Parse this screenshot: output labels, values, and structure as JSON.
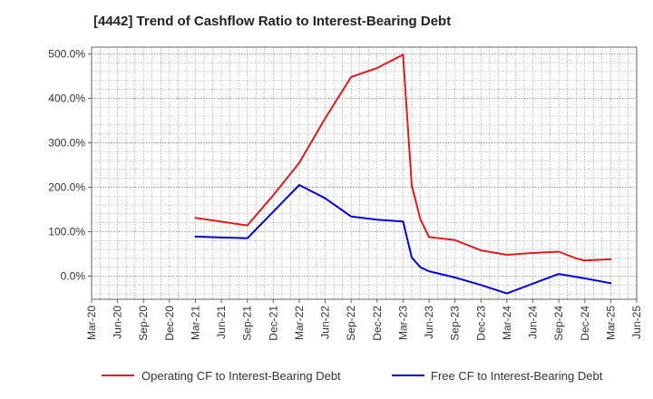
{
  "chart_data": {
    "type": "line",
    "title": "[4442]  Trend of Cashflow Ratio to Interest-Bearing Debt",
    "xlabel": "",
    "ylabel": "",
    "x_ticks": [
      "Mar-20",
      "Jun-20",
      "Sep-20",
      "Dec-20",
      "Mar-21",
      "Jun-21",
      "Sep-21",
      "Dec-21",
      "Mar-22",
      "Jun-22",
      "Sep-22",
      "Dec-22",
      "Mar-23",
      "Jun-23",
      "Sep-23",
      "Dec-23",
      "Mar-24",
      "Jun-24",
      "Sep-24",
      "Dec-24",
      "Mar-25",
      "Jun-25"
    ],
    "y_ticks": [
      0,
      100,
      200,
      300,
      400,
      500
    ],
    "y_tick_labels": [
      "0.0%",
      "100.0%",
      "200.0%",
      "300.0%",
      "400.0%",
      "500.0%"
    ],
    "ylim": [
      -52,
      515
    ],
    "grid": true,
    "legend_position": "bottom",
    "series": [
      {
        "name": "Operating CF to Interest-Bearing Debt",
        "color": "#e31a1c",
        "points": [
          [
            "Mar-21",
            131
          ],
          [
            "Sep-21",
            114
          ],
          [
            "Dec-21",
            182
          ],
          [
            "Mar-22",
            255
          ],
          [
            "Jun-22",
            355
          ],
          [
            "Sep-22",
            448
          ],
          [
            "Dec-22",
            468
          ],
          [
            "Mar-23",
            498
          ],
          [
            "Apr-23",
            204
          ],
          [
            "May-23",
            128
          ],
          [
            "Jun-23",
            88
          ],
          [
            "Sep-23",
            81
          ],
          [
            "Dec-23",
            58
          ],
          [
            "Mar-24",
            48
          ],
          [
            "Jun-24",
            52
          ],
          [
            "Sep-24",
            55
          ],
          [
            "Nov-24",
            40
          ],
          [
            "Dec-24",
            35
          ],
          [
            "Mar-25",
            38
          ]
        ]
      },
      {
        "name": "Free CF to Interest-Bearing Debt",
        "color": "#0000dd",
        "points": [
          [
            "Mar-21",
            89
          ],
          [
            "Sep-21",
            85
          ],
          [
            "Dec-21",
            145
          ],
          [
            "Mar-22",
            205
          ],
          [
            "Jun-22",
            175
          ],
          [
            "Sep-22",
            134
          ],
          [
            "Dec-22",
            127
          ],
          [
            "Mar-23",
            123
          ],
          [
            "Apr-23",
            42
          ],
          [
            "May-23",
            20
          ],
          [
            "Jun-23",
            11
          ],
          [
            "Sep-23",
            -3
          ],
          [
            "Dec-23",
            -20
          ],
          [
            "Mar-24",
            -39
          ],
          [
            "Jun-24",
            -17
          ],
          [
            "Sep-24",
            5
          ],
          [
            "Dec-24",
            -5
          ],
          [
            "Mar-25",
            -16
          ]
        ]
      }
    ]
  }
}
